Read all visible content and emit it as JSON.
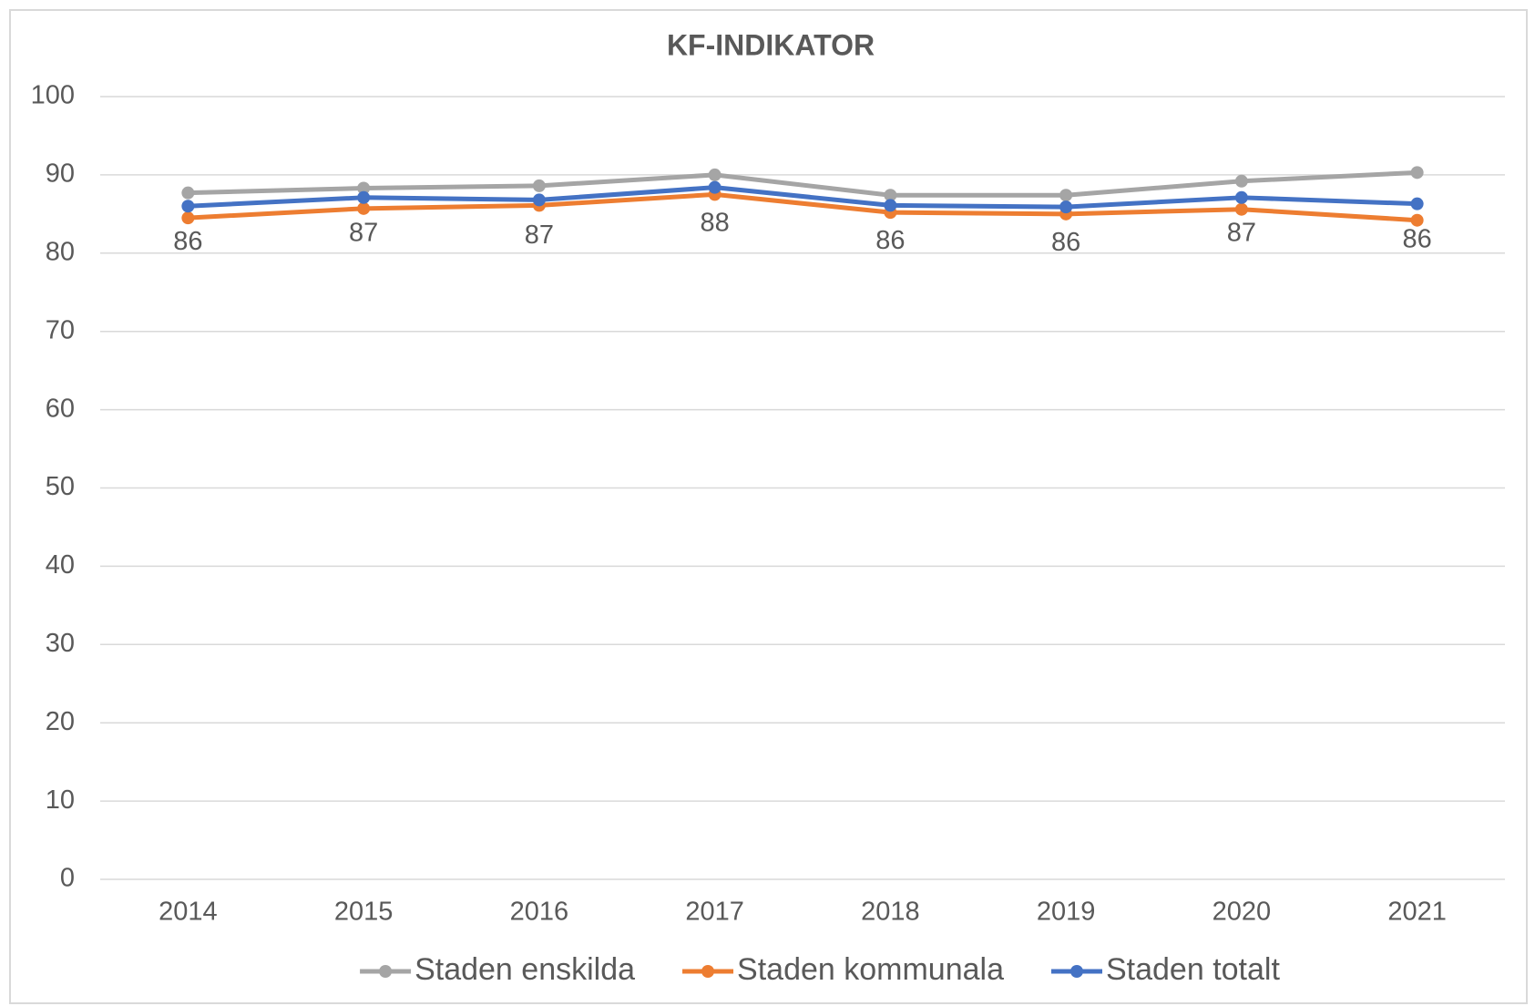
{
  "chart_data": {
    "type": "line",
    "title": "KF-INDIKATOR",
    "categories": [
      "2014",
      "2015",
      "2016",
      "2017",
      "2018",
      "2019",
      "2020",
      "2021"
    ],
    "series": [
      {
        "name": "Staden enskilda",
        "color": "#a5a5a5",
        "values": [
          87.7,
          88.3,
          88.6,
          90.0,
          87.4,
          87.4,
          89.2,
          90.3
        ]
      },
      {
        "name": "Staden kommunala",
        "color": "#ed7d31",
        "values": [
          84.5,
          85.7,
          86.1,
          87.5,
          85.2,
          85.0,
          85.6,
          84.2
        ]
      },
      {
        "name": "Staden totalt",
        "color": "#4472c4",
        "values": [
          86.0,
          87.1,
          86.8,
          88.4,
          86.1,
          85.9,
          87.1,
          86.3
        ],
        "value_labels": [
          "86",
          "87",
          "87",
          "88",
          "86",
          "86",
          "87",
          "86"
        ]
      }
    ],
    "ylim": [
      0,
      100
    ],
    "yticks": [
      0,
      10,
      20,
      30,
      40,
      50,
      60,
      70,
      80,
      90,
      100
    ],
    "grid": true,
    "legend": "bottom"
  }
}
